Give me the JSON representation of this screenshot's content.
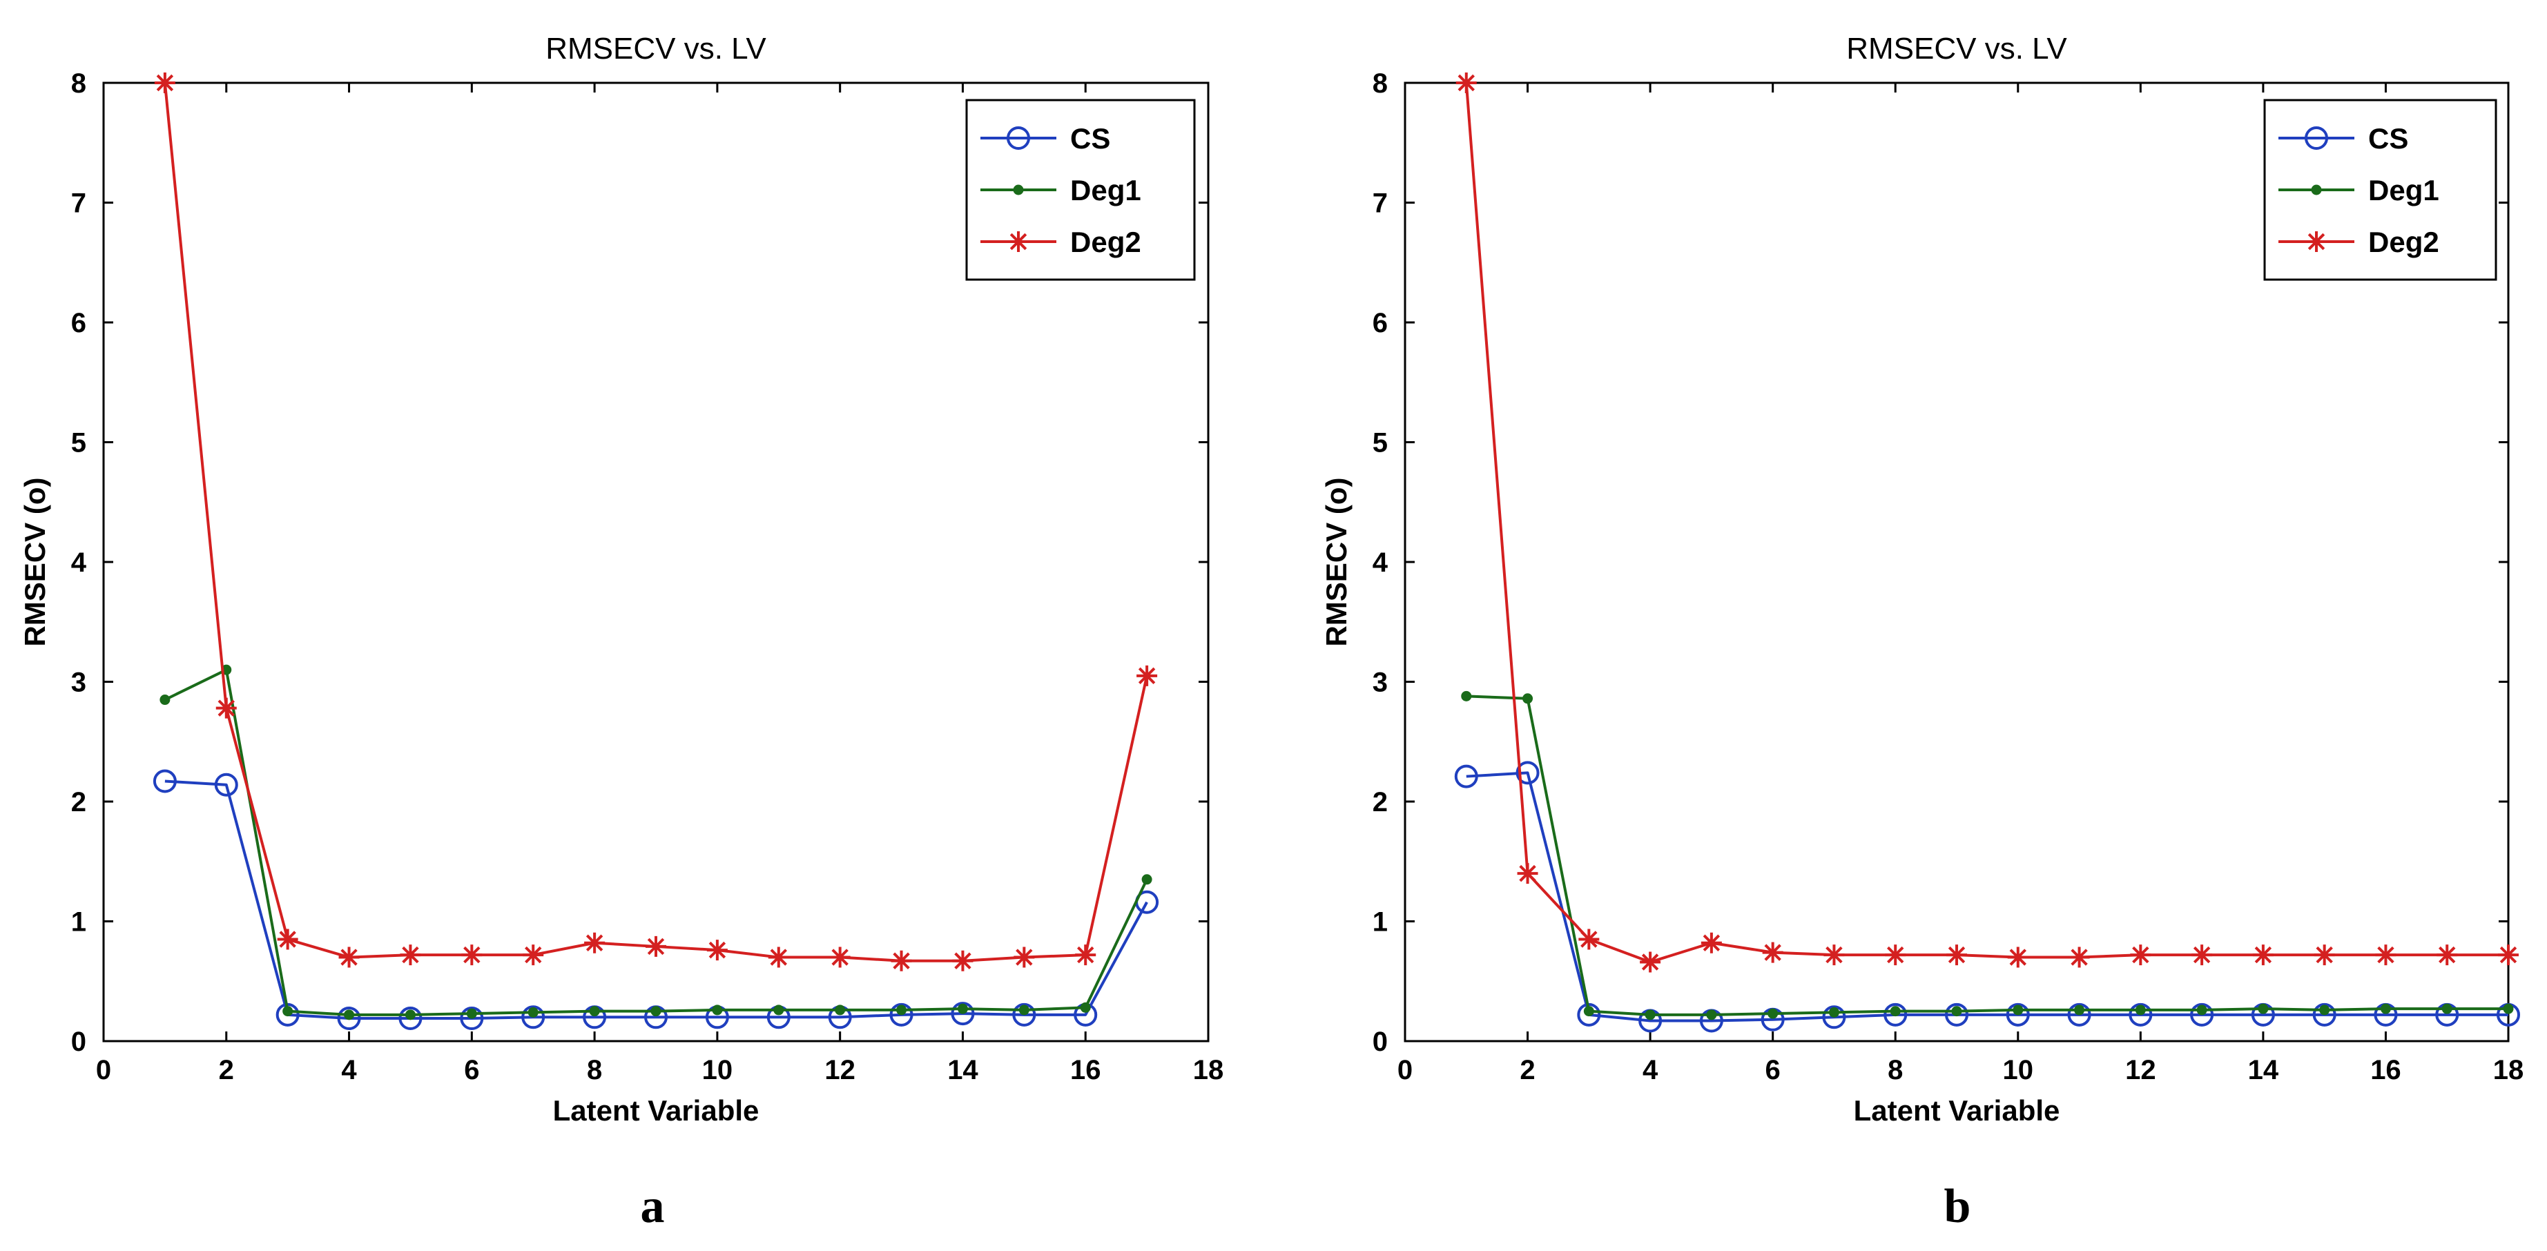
{
  "chart_data": [
    {
      "type": "line",
      "panel_label": "a",
      "title": "RMSECV vs. LV",
      "xlabel": "Latent Variable",
      "ylabel": "RMSECV (o)",
      "xlim": [
        0,
        18
      ],
      "ylim": [
        0,
        8
      ],
      "xticks": [
        0,
        2,
        4,
        6,
        8,
        10,
        12,
        14,
        16,
        18
      ],
      "yticks": [
        0,
        1,
        2,
        3,
        4,
        5,
        6,
        7,
        8
      ],
      "legend_position": "top-right",
      "x": [
        1,
        2,
        3,
        4,
        5,
        6,
        7,
        8,
        9,
        10,
        11,
        12,
        13,
        14,
        15,
        16,
        17
      ],
      "series": [
        {
          "name": "CS",
          "color": "#1f3fbf",
          "marker": "circle",
          "values": [
            2.17,
            2.14,
            0.22,
            0.19,
            0.19,
            0.19,
            0.2,
            0.2,
            0.2,
            0.2,
            0.2,
            0.2,
            0.22,
            0.23,
            0.22,
            0.22,
            1.16
          ]
        },
        {
          "name": "Deg1",
          "color": "#1a6b1a",
          "marker": "dot",
          "values": [
            2.85,
            3.1,
            0.25,
            0.22,
            0.22,
            0.23,
            0.24,
            0.25,
            0.25,
            0.26,
            0.26,
            0.26,
            0.26,
            0.27,
            0.26,
            0.28,
            1.35
          ]
        },
        {
          "name": "Deg2",
          "color": "#d42020",
          "marker": "star",
          "values": [
            8.0,
            2.78,
            0.85,
            0.7,
            0.72,
            0.72,
            0.72,
            0.82,
            0.79,
            0.76,
            0.7,
            0.7,
            0.67,
            0.67,
            0.7,
            0.72,
            3.05
          ]
        }
      ]
    },
    {
      "type": "line",
      "panel_label": "b",
      "title": "RMSECV vs. LV",
      "xlabel": "Latent Variable",
      "ylabel": "RMSECV (o)",
      "xlim": [
        0,
        18
      ],
      "ylim": [
        0,
        8
      ],
      "xticks": [
        0,
        2,
        4,
        6,
        8,
        10,
        12,
        14,
        16,
        18
      ],
      "yticks": [
        0,
        1,
        2,
        3,
        4,
        5,
        6,
        7,
        8
      ],
      "legend_position": "top-right",
      "x": [
        1,
        2,
        3,
        4,
        5,
        6,
        7,
        8,
        9,
        10,
        11,
        12,
        13,
        14,
        15,
        16,
        17,
        18
      ],
      "series": [
        {
          "name": "CS",
          "color": "#1f3fbf",
          "marker": "circle",
          "values": [
            2.21,
            2.24,
            0.22,
            0.17,
            0.17,
            0.18,
            0.2,
            0.22,
            0.22,
            0.22,
            0.22,
            0.22,
            0.22,
            0.22,
            0.22,
            0.22,
            0.22,
            0.22
          ]
        },
        {
          "name": "Deg1",
          "color": "#1a6b1a",
          "marker": "dot",
          "values": [
            2.88,
            2.86,
            0.25,
            0.22,
            0.22,
            0.23,
            0.24,
            0.25,
            0.25,
            0.26,
            0.26,
            0.26,
            0.26,
            0.27,
            0.26,
            0.27,
            0.27,
            0.27
          ]
        },
        {
          "name": "Deg2",
          "color": "#d42020",
          "marker": "star",
          "values": [
            8.0,
            1.4,
            0.85,
            0.66,
            0.82,
            0.74,
            0.72,
            0.72,
            0.72,
            0.7,
            0.7,
            0.72,
            0.72,
            0.72,
            0.72,
            0.72,
            0.72,
            0.72
          ]
        }
      ]
    }
  ]
}
